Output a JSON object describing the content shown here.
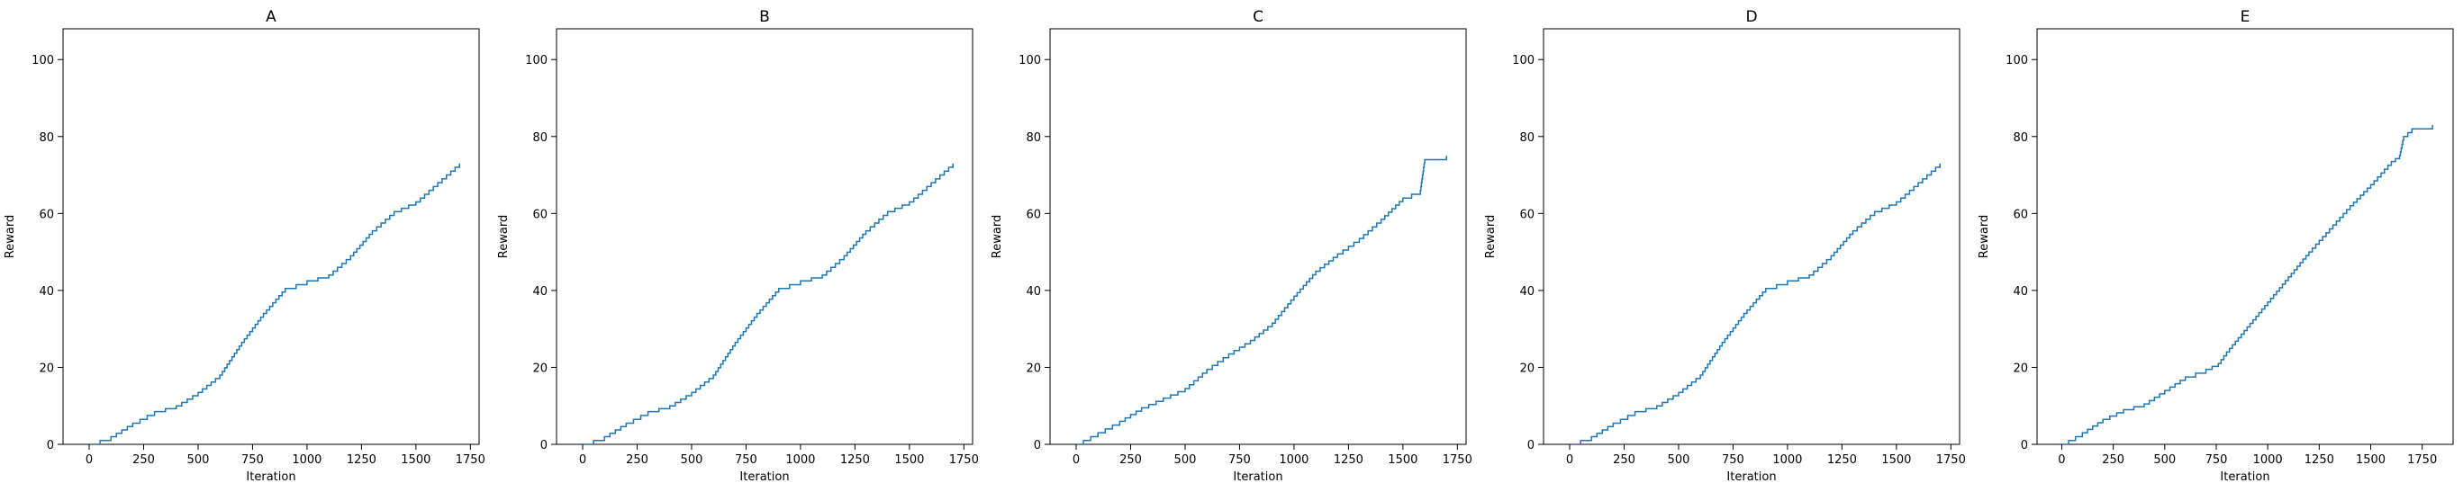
{
  "chart_data": [
    {
      "type": "line",
      "title": "A",
      "xlabel": "Iteration",
      "ylabel": "Reward",
      "xlim": [
        -120,
        1790
      ],
      "ylim": [
        0,
        108
      ],
      "xticks": [
        0,
        250,
        500,
        750,
        1000,
        1250,
        1500,
        1750
      ],
      "yticks": [
        0,
        20,
        40,
        60,
        80,
        100
      ],
      "grid": false,
      "color": "#1f77b4",
      "x": [
        0,
        100,
        200,
        300,
        400,
        500,
        600,
        700,
        800,
        900,
        1000,
        1100,
        1200,
        1300,
        1400,
        1500,
        1600,
        1700
      ],
      "y": [
        0,
        2,
        5.5,
        8.5,
        10,
        13.5,
        18,
        26.5,
        34,
        40.5,
        42.5,
        44,
        49,
        55.5,
        60.5,
        63,
        68,
        73
      ]
    },
    {
      "type": "line",
      "title": "B",
      "xlabel": "Iteration",
      "ylabel": "Reward",
      "xlim": [
        -120,
        1790
      ],
      "ylim": [
        0,
        108
      ],
      "xticks": [
        0,
        250,
        500,
        750,
        1000,
        1250,
        1500,
        1750
      ],
      "yticks": [
        0,
        20,
        40,
        60,
        80,
        100
      ],
      "grid": false,
      "color": "#1f77b4",
      "x": [
        0,
        100,
        200,
        300,
        400,
        500,
        600,
        700,
        800,
        900,
        1000,
        1100,
        1200,
        1300,
        1400,
        1500,
        1600,
        1700
      ],
      "y": [
        0,
        2,
        5.5,
        8.5,
        10,
        13.5,
        18,
        26.5,
        34,
        40.5,
        42.5,
        44,
        49,
        55.5,
        60.5,
        63,
        68,
        73
      ]
    },
    {
      "type": "line",
      "title": "C",
      "xlabel": "Iteration",
      "ylabel": "Reward",
      "xlim": [
        -120,
        1790
      ],
      "ylim": [
        0,
        108
      ],
      "xticks": [
        0,
        250,
        500,
        750,
        1000,
        1250,
        1500,
        1750
      ],
      "yticks": [
        0,
        20,
        40,
        60,
        80,
        100
      ],
      "grid": false,
      "color": "#1f77b4",
      "x": [
        0,
        100,
        200,
        300,
        400,
        500,
        600,
        700,
        800,
        900,
        1000,
        1100,
        1200,
        1300,
        1400,
        1500,
        1580,
        1600,
        1650,
        1700
      ],
      "y": [
        0,
        3,
        6,
        9.5,
        12,
        14.5,
        19.5,
        23.5,
        27,
        31.5,
        38.5,
        45,
        49.5,
        53.5,
        58.5,
        64,
        66,
        74,
        74,
        75
      ]
    },
    {
      "type": "line",
      "title": "D",
      "xlabel": "Iteration",
      "ylabel": "Reward",
      "xlim": [
        -120,
        1790
      ],
      "ylim": [
        0,
        108
      ],
      "xticks": [
        0,
        250,
        500,
        750,
        1000,
        1250,
        1500,
        1750
      ],
      "yticks": [
        0,
        20,
        40,
        60,
        80,
        100
      ],
      "grid": false,
      "color": "#1f77b4",
      "x": [
        0,
        100,
        200,
        300,
        400,
        500,
        600,
        700,
        800,
        900,
        1000,
        1100,
        1200,
        1300,
        1400,
        1500,
        1600,
        1700
      ],
      "y": [
        0,
        2,
        5.5,
        8.5,
        10,
        13.5,
        18,
        26.5,
        34,
        40.5,
        42.5,
        44,
        49,
        55.5,
        60.5,
        63,
        68,
        73
      ]
    },
    {
      "type": "line",
      "title": "E",
      "xlabel": "Iteration",
      "ylabel": "Reward",
      "xlim": [
        -120,
        1900
      ],
      "ylim": [
        0,
        108
      ],
      "xticks": [
        0,
        250,
        500,
        750,
        1000,
        1250,
        1500,
        1750
      ],
      "yticks": [
        0,
        20,
        40,
        60,
        80,
        100
      ],
      "grid": false,
      "color": "#1f77b4",
      "x": [
        0,
        100,
        200,
        300,
        400,
        500,
        600,
        700,
        760,
        800,
        900,
        1000,
        1100,
        1200,
        1300,
        1400,
        1500,
        1600,
        1640,
        1660,
        1700,
        1750,
        1800
      ],
      "y": [
        0,
        3,
        6.5,
        9,
        10.5,
        14,
        17.5,
        19.5,
        21,
        24,
        30.5,
        37,
        43.5,
        50,
        56,
        62,
        67.5,
        73.5,
        75,
        80,
        82,
        82,
        83
      ]
    }
  ]
}
